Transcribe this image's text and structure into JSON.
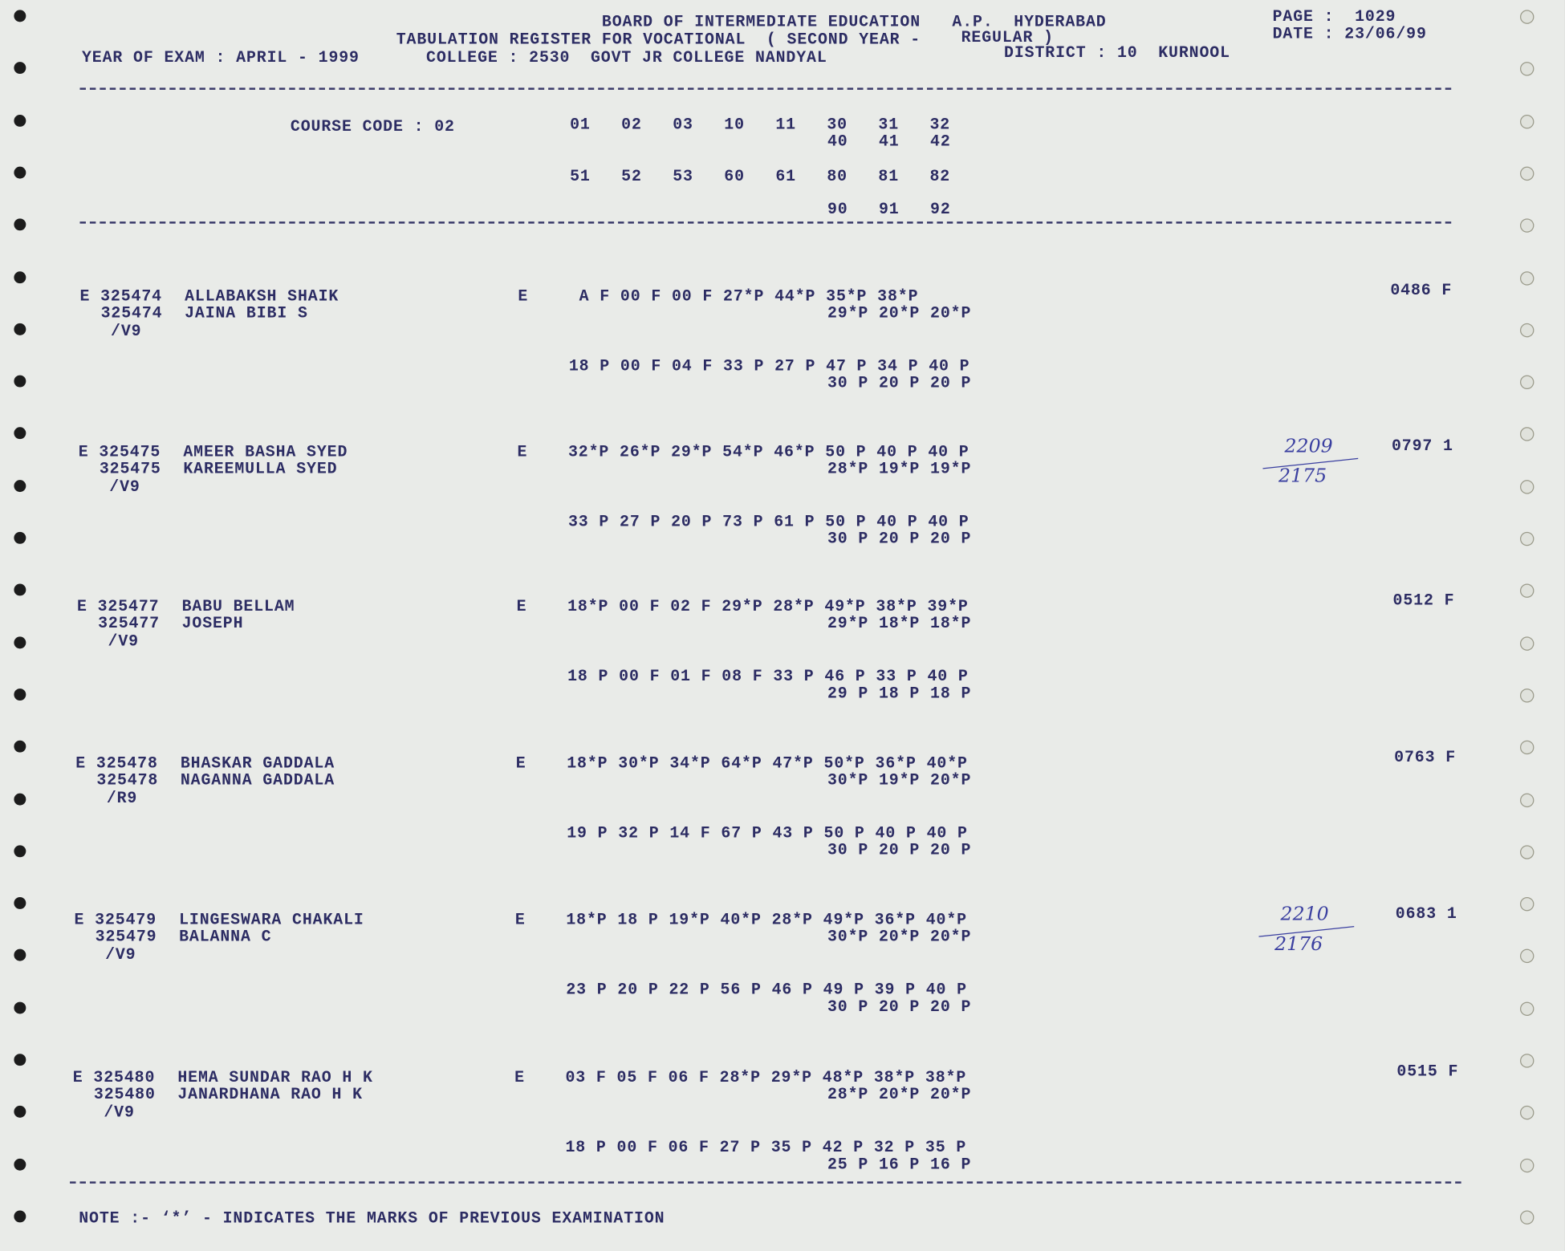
{
  "header": {
    "board": "BOARD OF INTERMEDIATE EDUCATION",
    "state": "A.P.  HYDERABAD",
    "register": "TABULATION REGISTER FOR VOCATIONAL  ( SECOND YEAR -",
    "regular": "REGULAR )",
    "year": "YEAR OF EXAM : APRIL - 1999",
    "college": "COLLEGE : 2530  GOVT JR COLLEGE NANDYAL",
    "district": "DISTRICT : 10  KURNOOL",
    "page": "PAGE :  1029",
    "date": "DATE : 23/06/99"
  },
  "course": {
    "label": "COURSE CODE : 02",
    "row1": "01   02   03   10   11   30   31   32",
    "row1b": "40   41   42",
    "row2": "51   52   53   60   61   80   81   82",
    "row3": "90   91   92"
  },
  "students": [
    {
      "roll1": "E 325474",
      "name1": "ALLABAKSH SHAIK",
      "roll2": "325474",
      "name2": "JAINA BIBI S",
      "code": "/V9",
      "stream": "E",
      "m1": " A F 00 F 00 F 27*P 44*P 35*P 38*P",
      "m1b": "29*P 20*P 20*P",
      "m2": "18 P 00 F 04 F 33 P 27 P 47 P 34 P 40 P",
      "m2b": "30 P 20 P 20 P",
      "result": "0486 F"
    },
    {
      "roll1": "E 325475",
      "name1": "AMEER BASHA SYED",
      "roll2": "325475",
      "name2": "KAREEMULLA SYED",
      "code": "/V9",
      "stream": "E",
      "m1": "32*P 26*P 29*P 54*P 46*P 50 P 40 P 40 P",
      "m1b": "28*P 19*P 19*P",
      "m2": "33 P 27 P 20 P 73 P 61 P 50 P 40 P 40 P",
      "m2b": "30 P 20 P 20 P",
      "result": "0797 1",
      "handnote": [
        "2209",
        "2175"
      ]
    },
    {
      "roll1": "E 325477",
      "name1": "BABU BELLAM",
      "roll2": "325477",
      "name2": "JOSEPH",
      "code": "/V9",
      "stream": "E",
      "m1": "18*P 00 F 02 F 29*P 28*P 49*P 38*P 39*P",
      "m1b": "29*P 18*P 18*P",
      "m2": "18 P 00 F 01 F 08 F 33 P 46 P 33 P 40 P",
      "m2b": "29 P 18 P 18 P",
      "result": "0512 F"
    },
    {
      "roll1": "E 325478",
      "name1": "BHASKAR GADDALA",
      "roll2": "325478",
      "name2": "NAGANNA GADDALA",
      "code": "/R9",
      "stream": "E",
      "m1": "18*P 30*P 34*P 64*P 47*P 50*P 36*P 40*P",
      "m1b": "30*P 19*P 20*P",
      "m2": "19 P 32 P 14 F 67 P 43 P 50 P 40 P 40 P",
      "m2b": "30 P 20 P 20 P",
      "result": "0763 F"
    },
    {
      "roll1": "E 325479",
      "name1": "LINGESWARA CHAKALI",
      "roll2": "325479",
      "name2": "BALANNA C",
      "code": "/V9",
      "stream": "E",
      "m1": "18*P 18 P 19*P 40*P 28*P 49*P 36*P 40*P",
      "m1b": "30*P 20*P 20*P",
      "m2": "23 P 20 P 22 P 56 P 46 P 49 P 39 P 40 P",
      "m2b": "30 P 20 P 20 P",
      "result": "0683 1",
      "handnote": [
        "2210",
        "2176"
      ]
    },
    {
      "roll1": "E 325480",
      "name1": "HEMA SUNDAR RAO H K",
      "roll2": "325480",
      "name2": "JANARDHANA RAO H K",
      "code": "/V9",
      "stream": "E",
      "m1": "03 F 05 F 06 F 28*P 29*P 48*P 38*P 38*P",
      "m1b": "28*P 20*P 20*P",
      "m2": "18 P 00 F 06 F 27 P 35 P 42 P 32 P 35 P",
      "m2b": "25 P 16 P 16 P",
      "result": "0515 F"
    }
  ],
  "note": "NOTE :- ‘*’ - INDICATES THE MARKS OF PREVIOUS EXAMINATION"
}
